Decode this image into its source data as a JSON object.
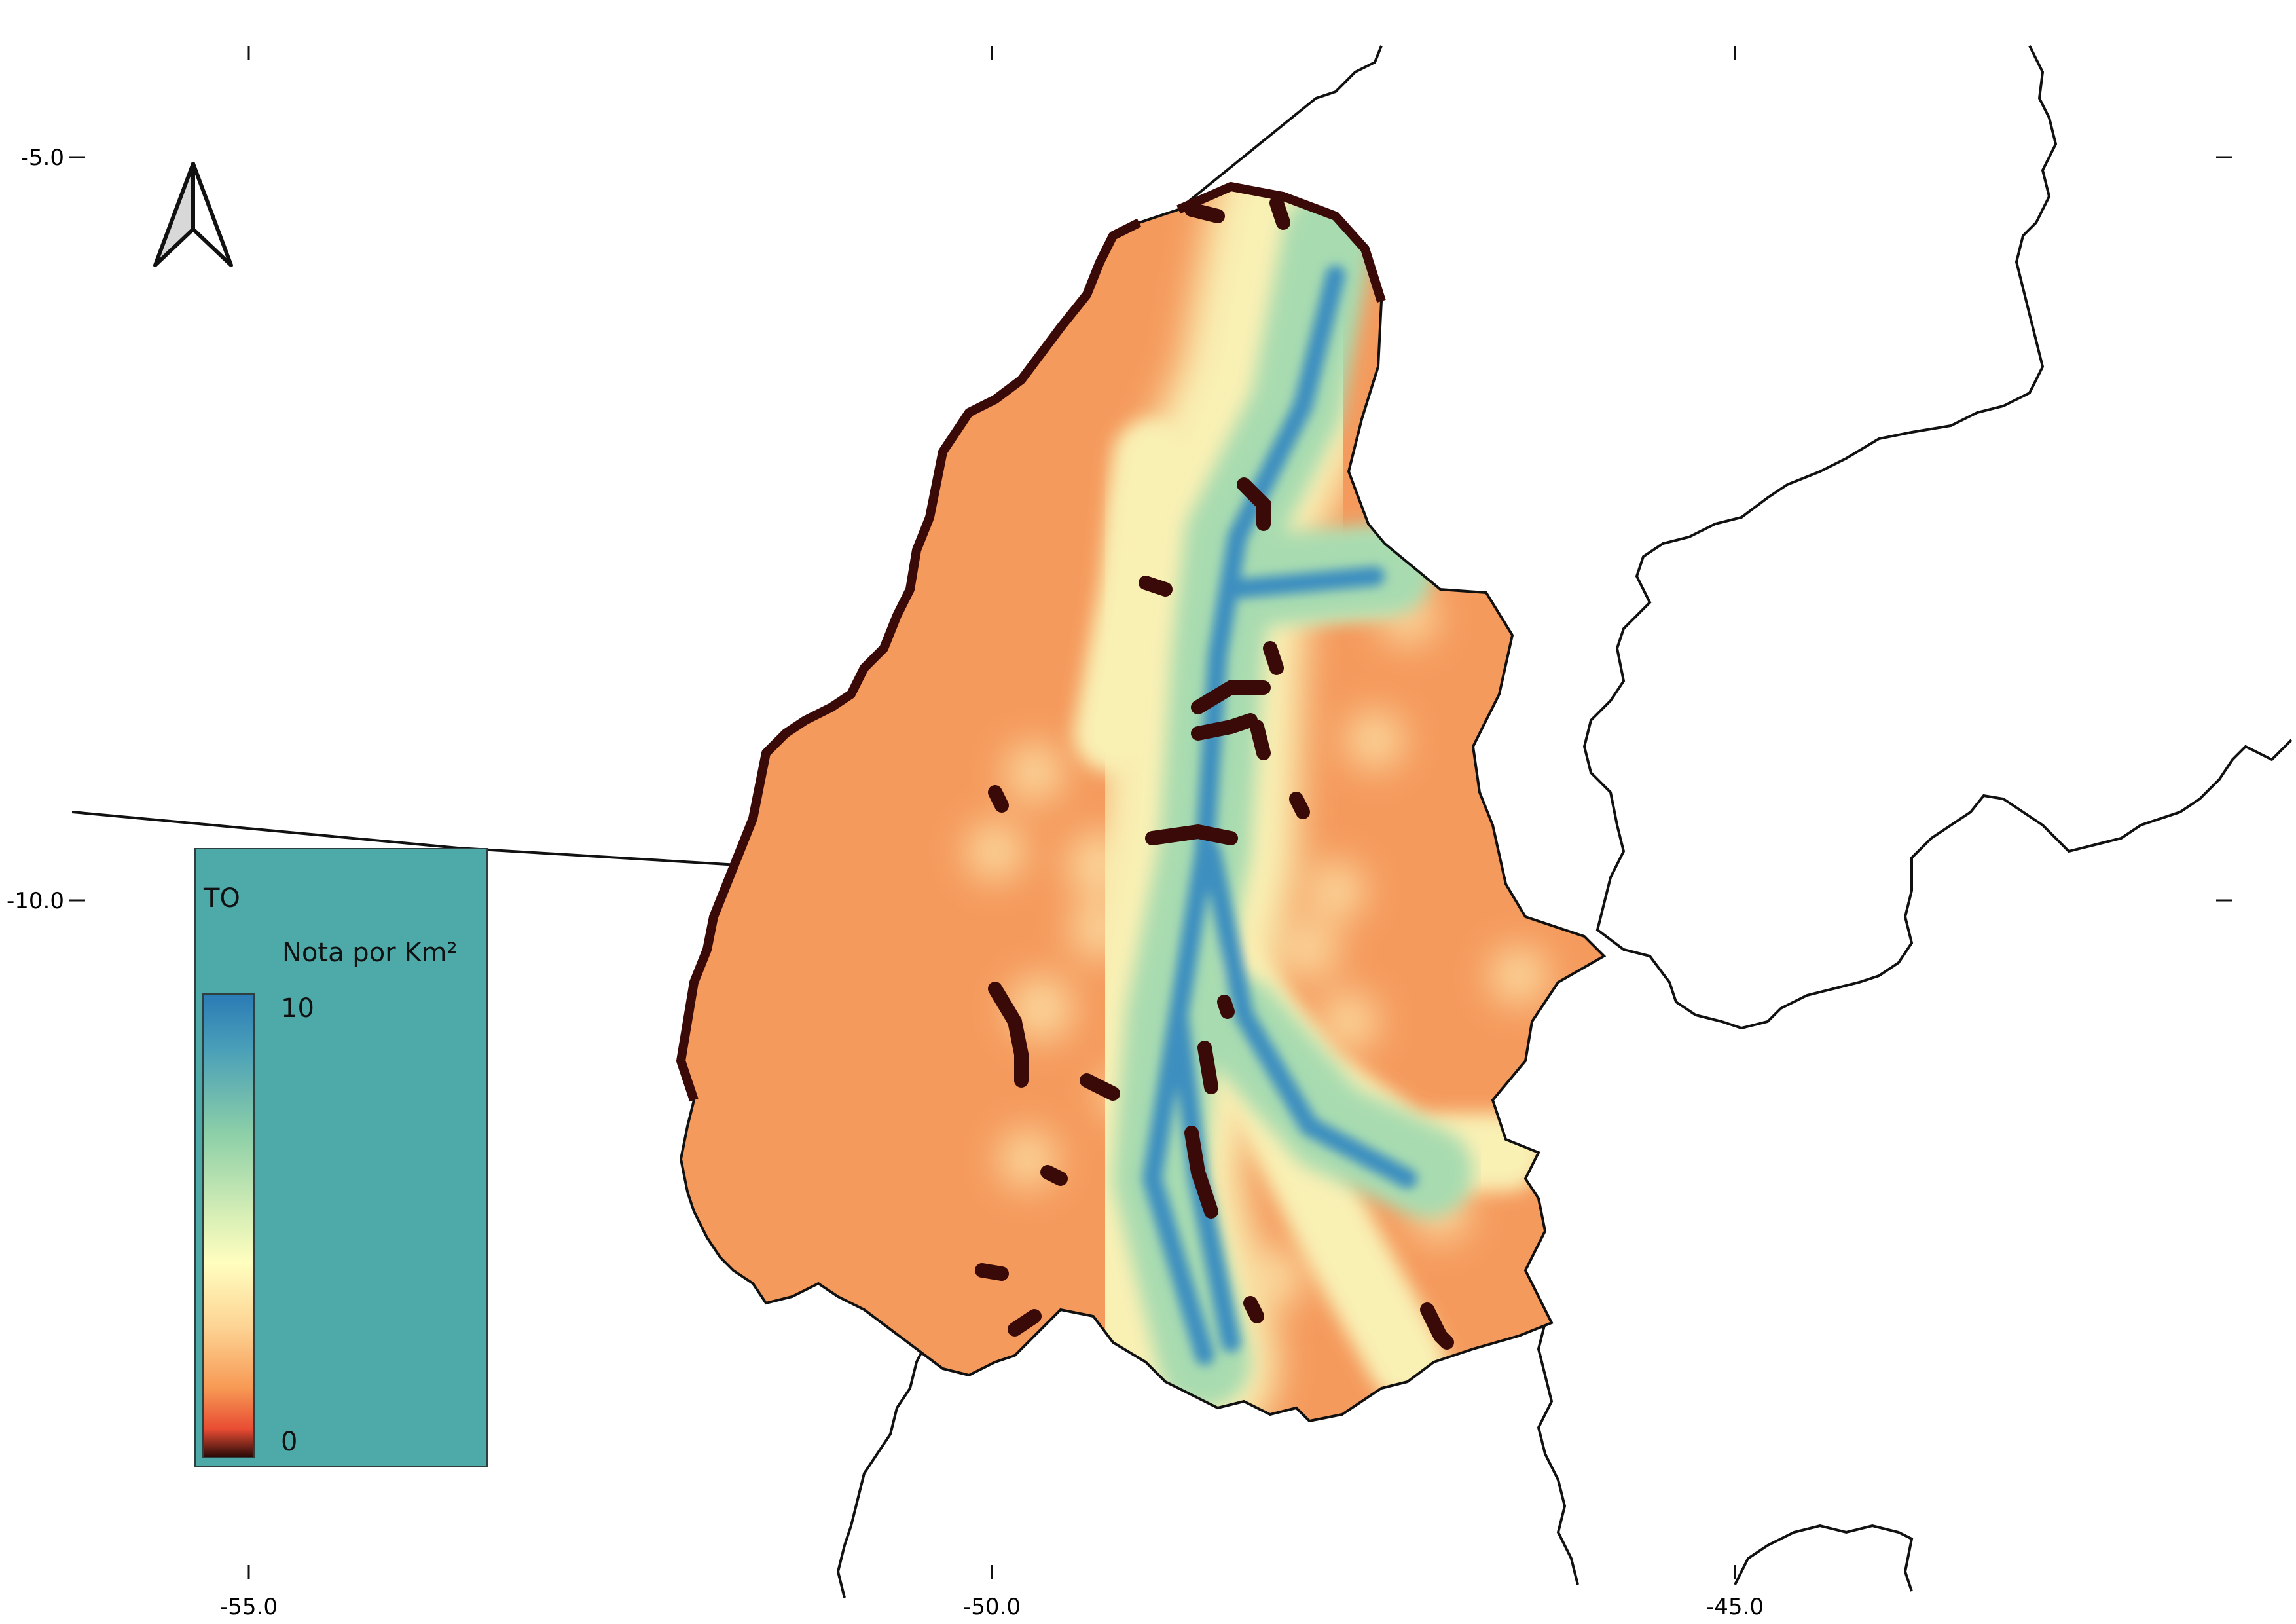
{
  "map": {
    "x_ticks": [
      "-55.0",
      "-50.0",
      "-45.0"
    ],
    "y_ticks": [
      "-5.0",
      "-10.0"
    ]
  },
  "legend": {
    "title": "TO",
    "subtitle": "Nota por Km²",
    "max_label": "10",
    "min_label": "0",
    "background": "#4ea9a9",
    "ramp_colors": [
      "#2b7bb6",
      "#8ccfa8",
      "#fffebf",
      "#f79a55",
      "#e84c33",
      "#2a0a08"
    ]
  },
  "colors": {
    "state_fill": "#f59a5d",
    "corridor_light": "#f9f0b4",
    "corridor_green": "#a8dbb0",
    "corridor_blue": "#3d8fc0",
    "dark_marks": "#3a0a08",
    "boundary_lines": "#111111"
  },
  "icons": {
    "north_arrow": "north-arrow-icon"
  }
}
